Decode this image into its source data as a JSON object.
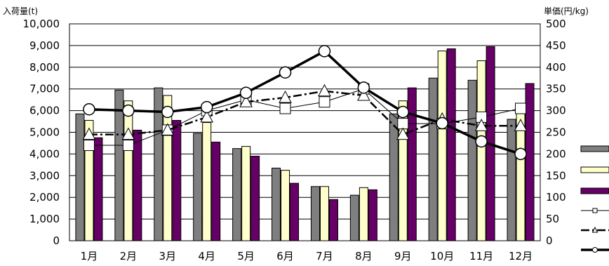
{
  "chart_data": {
    "type": "bar",
    "left_axis_label": "入荷量(t)",
    "right_axis_label": "単価(円/kg)",
    "categories": [
      "1月",
      "2月",
      "3月",
      "4月",
      "5月",
      "6月",
      "7月",
      "8月",
      "9月",
      "10月",
      "11月",
      "12月"
    ],
    "y_left": {
      "min": 0,
      "max": 10000,
      "step": 1000,
      "tick_labels": [
        "0",
        "1,000",
        "2,000",
        "3,000",
        "4,000",
        "5,000",
        "6,000",
        "7,000",
        "8,000",
        "9,000",
        "10,000"
      ]
    },
    "y_right": {
      "min": 0,
      "max": 500,
      "step": 50,
      "tick_labels": [
        "0",
        "50",
        "100",
        "150",
        "200",
        "250",
        "300",
        "350",
        "400",
        "450",
        "500"
      ]
    },
    "grid": true,
    "bar_series": [
      {
        "color": "#7f7f7f",
        "values": [
          5850,
          6950,
          7050,
          4950,
          4250,
          3350,
          2500,
          2100,
          5850,
          7500,
          7400,
          5600
        ]
      },
      {
        "color": "#ffffcc",
        "values": [
          5550,
          6450,
          6700,
          5450,
          4350,
          3250,
          2500,
          2450,
          6450,
          8750,
          8300,
          6200
        ]
      },
      {
        "color": "#660066",
        "values": [
          4750,
          5100,
          5550,
          4550,
          3900,
          2650,
          1900,
          2350,
          7050,
          8850,
          8950,
          7250
        ]
      }
    ],
    "line_series": [
      {
        "marker": "square",
        "style": "thin-solid",
        "values": [
          220,
          220,
          255,
          300,
          325,
          305,
          320,
          350,
          270,
          270,
          285,
          305
        ]
      },
      {
        "marker": "triangle",
        "style": "dash-dot",
        "values": [
          245,
          245,
          255,
          285,
          320,
          330,
          345,
          335,
          245,
          280,
          265,
          265
        ]
      },
      {
        "marker": "circle",
        "style": "thick-solid",
        "values": [
          303,
          300,
          297,
          308,
          341,
          388,
          437,
          353,
          297,
          271,
          229,
          200
        ]
      }
    ]
  }
}
